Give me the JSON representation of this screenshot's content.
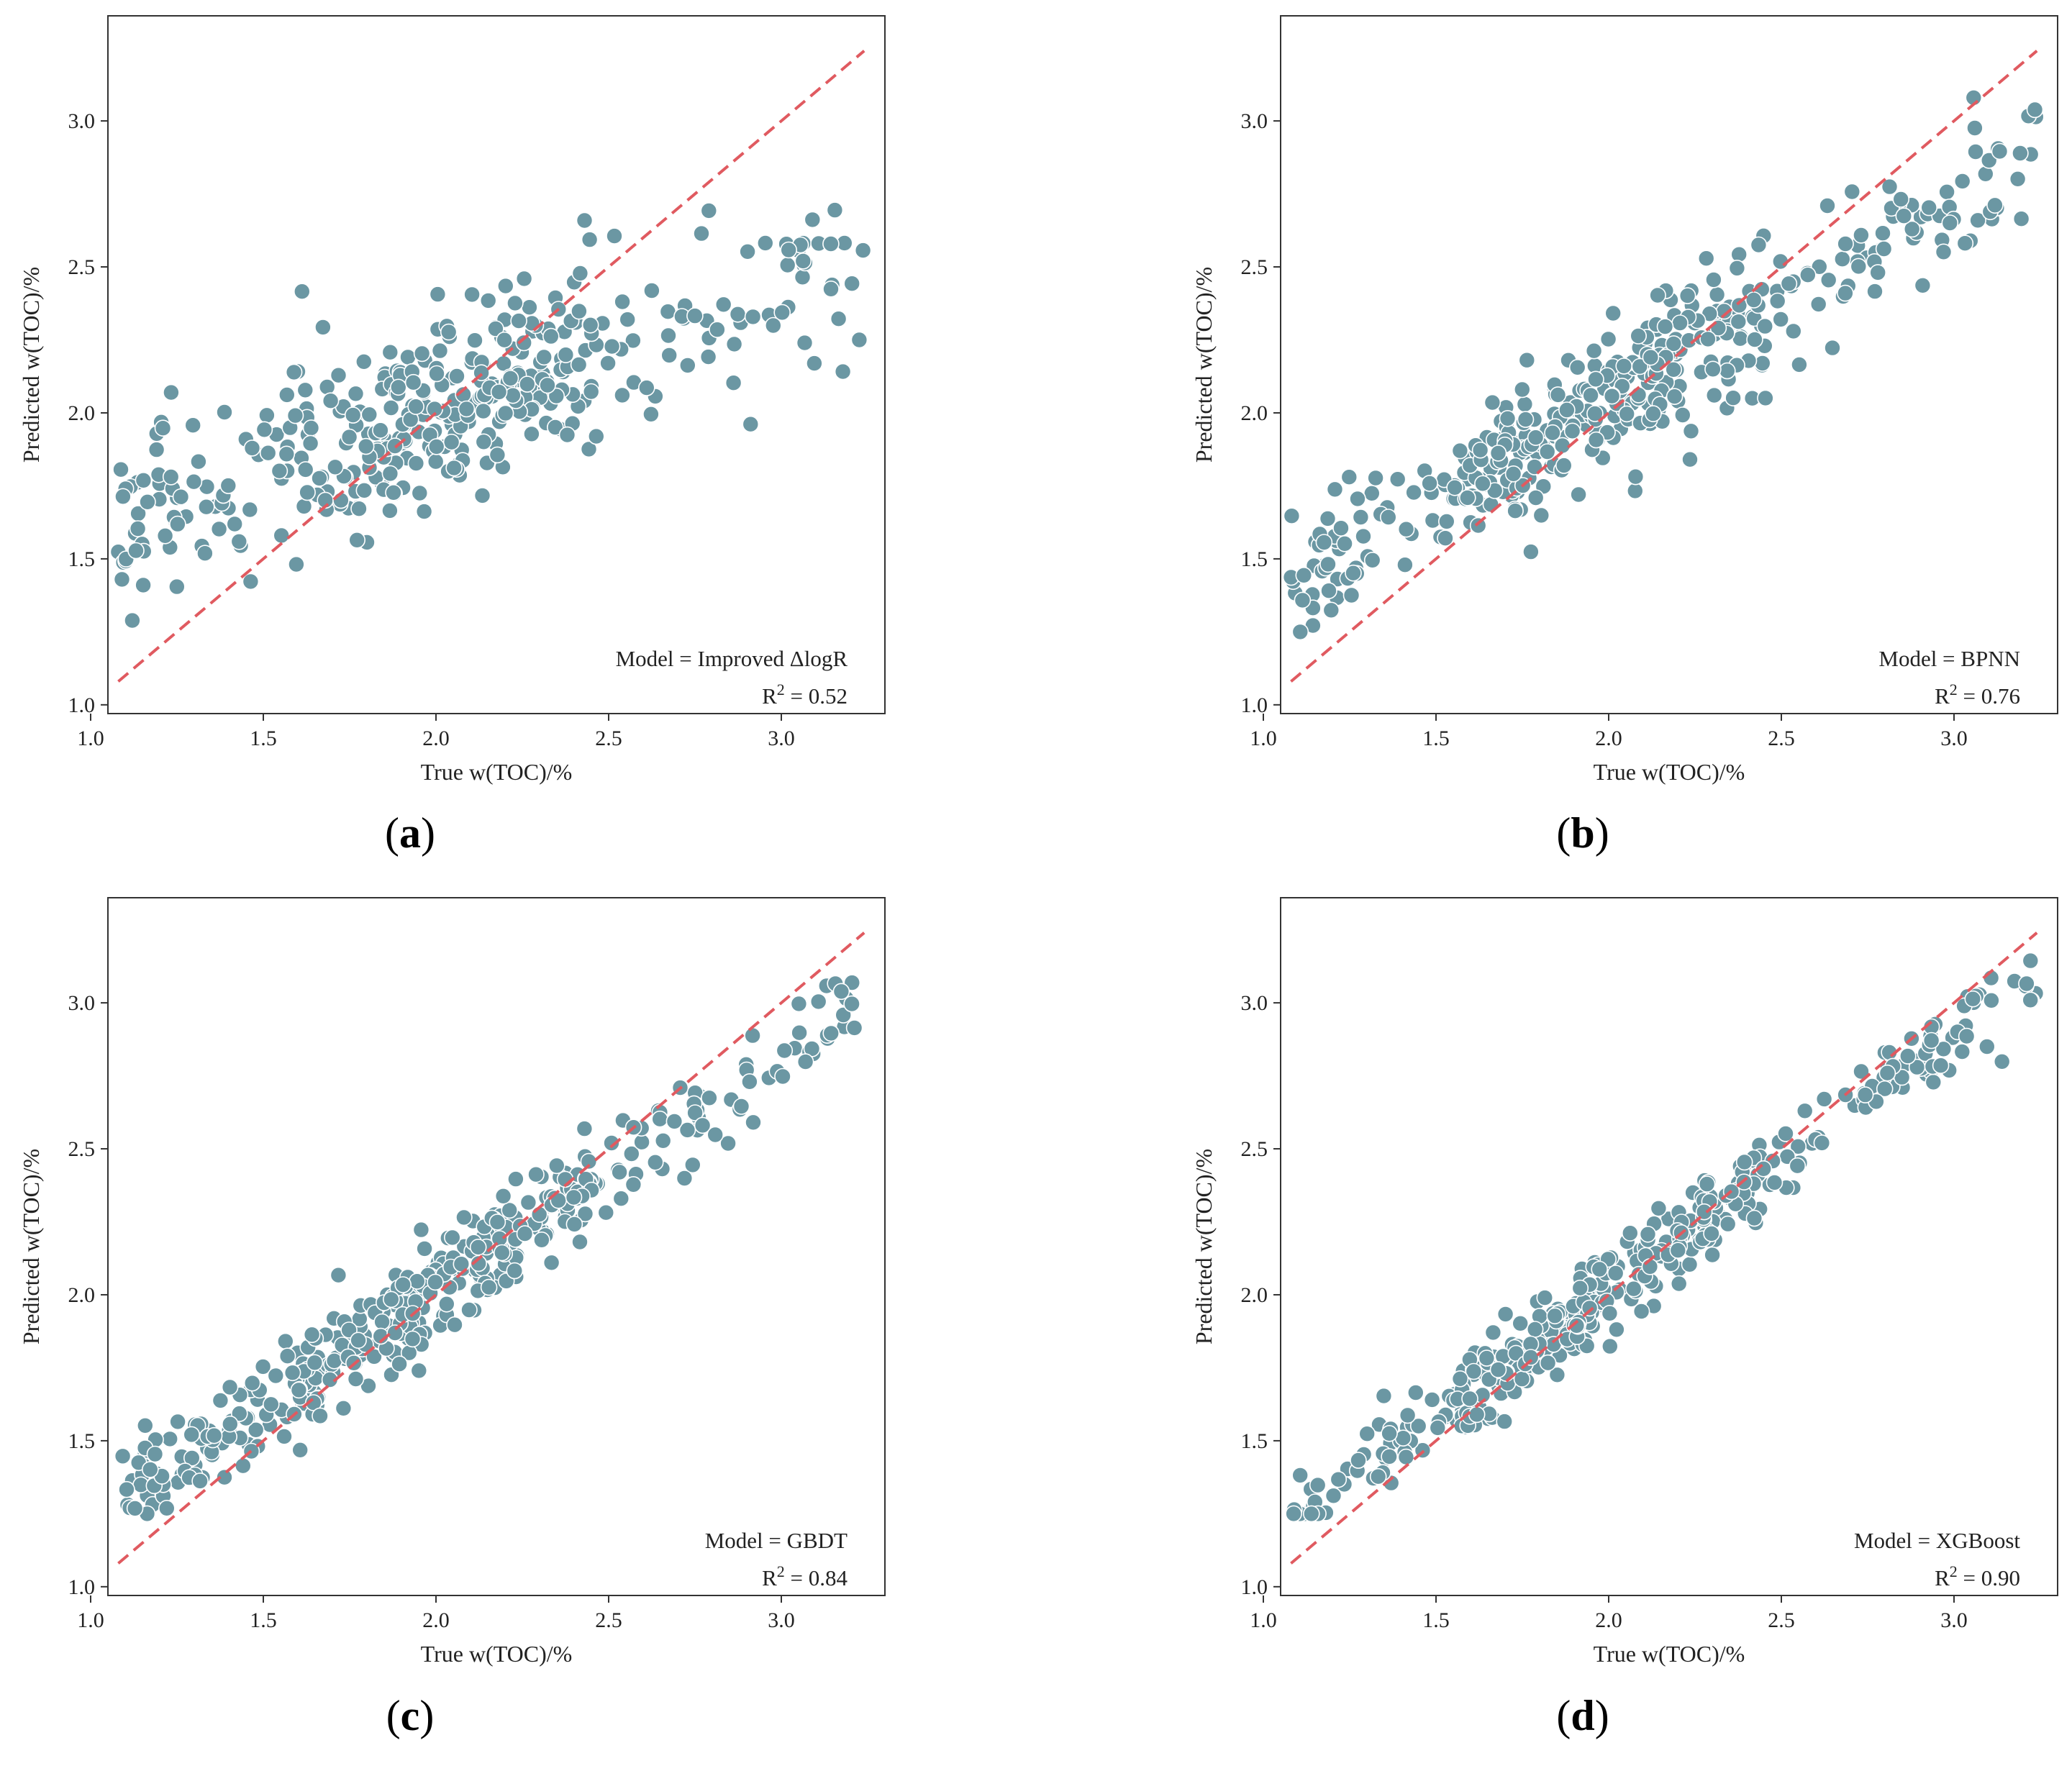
{
  "figure": {
    "marker_color": "#6b97a3",
    "marker_edge_color": "#ffffff",
    "line_color": "#e05a60",
    "axis_color": "#333333"
  },
  "chart_data": [
    {
      "type": "scatter",
      "panel": "a",
      "panel_label": "(a)",
      "panel_letter": "a",
      "xlabel": "True w(TOC)/%",
      "ylabel": "Predicted w(TOC)/%",
      "xlim": [
        1.05,
        3.3
      ],
      "ylim": [
        0.97,
        3.36
      ],
      "xticks": [
        "1.0",
        "1.5",
        "2.0",
        "2.5",
        "3.0"
      ],
      "xtick_values": [
        1.0,
        1.5,
        2.0,
        2.5,
        3.0
      ],
      "yticks": [
        "1.0",
        "1.5",
        "2.0",
        "2.5",
        "3.0"
      ],
      "ytick_values": [
        1.0,
        1.5,
        2.0,
        2.5,
        3.0
      ],
      "model_text": "Model = Improved ΔlogR",
      "r2_prefix": "R",
      "r2_sup": "2",
      "r2_value_text": " = 0.52",
      "r2": 0.52,
      "identity_line": {
        "x": [
          1.08,
          3.24
        ],
        "y": [
          1.08,
          3.24
        ],
        "style": "dashed"
      },
      "point_count": 420,
      "seed": 11,
      "slope": 0.42,
      "intercept": 1.17,
      "noise": 0.16
    },
    {
      "type": "scatter",
      "panel": "b",
      "panel_label": "(b)",
      "panel_letter": "b",
      "xlabel": "True w(TOC)/%",
      "ylabel": "Predicted w(TOC)/%",
      "xlim": [
        1.05,
        3.3
      ],
      "ylim": [
        0.97,
        3.36
      ],
      "xticks": [
        "1.0",
        "1.5",
        "2.0",
        "2.5",
        "3.0"
      ],
      "xtick_values": [
        1.0,
        1.5,
        2.0,
        2.5,
        3.0
      ],
      "yticks": [
        "1.0",
        "1.5",
        "2.0",
        "2.5",
        "3.0"
      ],
      "ytick_values": [
        1.0,
        1.5,
        2.0,
        2.5,
        3.0
      ],
      "model_text": "Model = BPNN",
      "r2_prefix": "R",
      "r2_sup": "2",
      "r2_value_text": " = 0.76",
      "r2": 0.76,
      "identity_line": {
        "x": [
          1.08,
          3.24
        ],
        "y": [
          1.08,
          3.24
        ],
        "style": "dashed"
      },
      "point_count": 420,
      "seed": 23,
      "slope": 0.68,
      "intercept": 0.67,
      "noise": 0.12
    },
    {
      "type": "scatter",
      "panel": "c",
      "panel_label": "(c)",
      "panel_letter": "c",
      "xlabel": "True w(TOC)/%",
      "ylabel": "Predicted w(TOC)/%",
      "xlim": [
        1.05,
        3.3
      ],
      "ylim": [
        0.97,
        3.36
      ],
      "xticks": [
        "1.0",
        "1.5",
        "2.0",
        "2.5",
        "3.0"
      ],
      "xtick_values": [
        1.0,
        1.5,
        2.0,
        2.5,
        3.0
      ],
      "yticks": [
        "1.0",
        "1.5",
        "2.0",
        "2.5",
        "3.0"
      ],
      "ytick_values": [
        1.0,
        1.5,
        2.0,
        2.5,
        3.0
      ],
      "model_text": "Model = GBDT",
      "r2_prefix": "R",
      "r2_sup": "2",
      "r2_value_text": " = 0.84",
      "r2": 0.84,
      "identity_line": {
        "x": [
          1.08,
          3.24
        ],
        "y": [
          1.08,
          3.24
        ],
        "style": "dashed"
      },
      "point_count": 420,
      "seed": 37,
      "slope": 0.8,
      "intercept": 0.42,
      "noise": 0.09
    },
    {
      "type": "scatter",
      "panel": "d",
      "panel_label": "(d)",
      "panel_letter": "d",
      "xlabel": "True w(TOC)/%",
      "ylabel": "Predicted w(TOC)/%",
      "xlim": [
        1.05,
        3.3
      ],
      "ylim": [
        0.97,
        3.36
      ],
      "xticks": [
        "1.0",
        "1.5",
        "2.0",
        "2.5",
        "3.0"
      ],
      "xtick_values": [
        1.0,
        1.5,
        2.0,
        2.5,
        3.0
      ],
      "yticks": [
        "1.0",
        "1.5",
        "2.0",
        "2.5",
        "3.0"
      ],
      "ytick_values": [
        1.0,
        1.5,
        2.0,
        2.5,
        3.0
      ],
      "model_text": "Model = XGBoost",
      "r2_prefix": "R",
      "r2_sup": "2",
      "r2_value_text": " = 0.90",
      "r2": 0.9,
      "identity_line": {
        "x": [
          1.08,
          3.24
        ],
        "y": [
          1.08,
          3.24
        ],
        "style": "dashed"
      },
      "point_count": 420,
      "seed": 51,
      "slope": 0.88,
      "intercept": 0.26,
      "noise": 0.07
    }
  ]
}
